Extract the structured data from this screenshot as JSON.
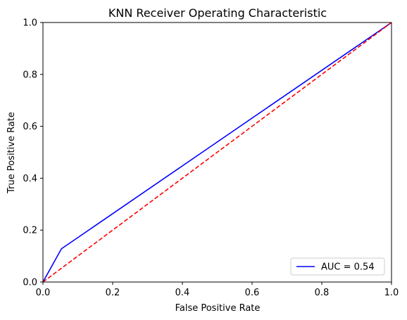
{
  "chart_data": {
    "type": "line",
    "title": "KNN Receiver Operating Characteristic",
    "xlabel": "False Positive Rate",
    "ylabel": "True Positive Rate",
    "xlim": [
      0,
      1
    ],
    "ylim": [
      0,
      1
    ],
    "xticks": [
      "0.0",
      "0.2",
      "0.4",
      "0.6",
      "0.8",
      "1.0"
    ],
    "yticks": [
      "0.0",
      "0.2",
      "0.4",
      "0.6",
      "0.8",
      "1.0"
    ],
    "grid": false,
    "legend_position": "lower-right",
    "series": [
      {
        "name": "AUC = 0.54",
        "color": "#0000ff",
        "style": "solid",
        "x": [
          0.0,
          0.053,
          1.0
        ],
        "y": [
          0.0,
          0.128,
          1.0
        ]
      },
      {
        "color": "#ff0000",
        "style": "dashed",
        "x": [
          0.0,
          1.0
        ],
        "y": [
          0.0,
          1.0
        ]
      }
    ]
  }
}
